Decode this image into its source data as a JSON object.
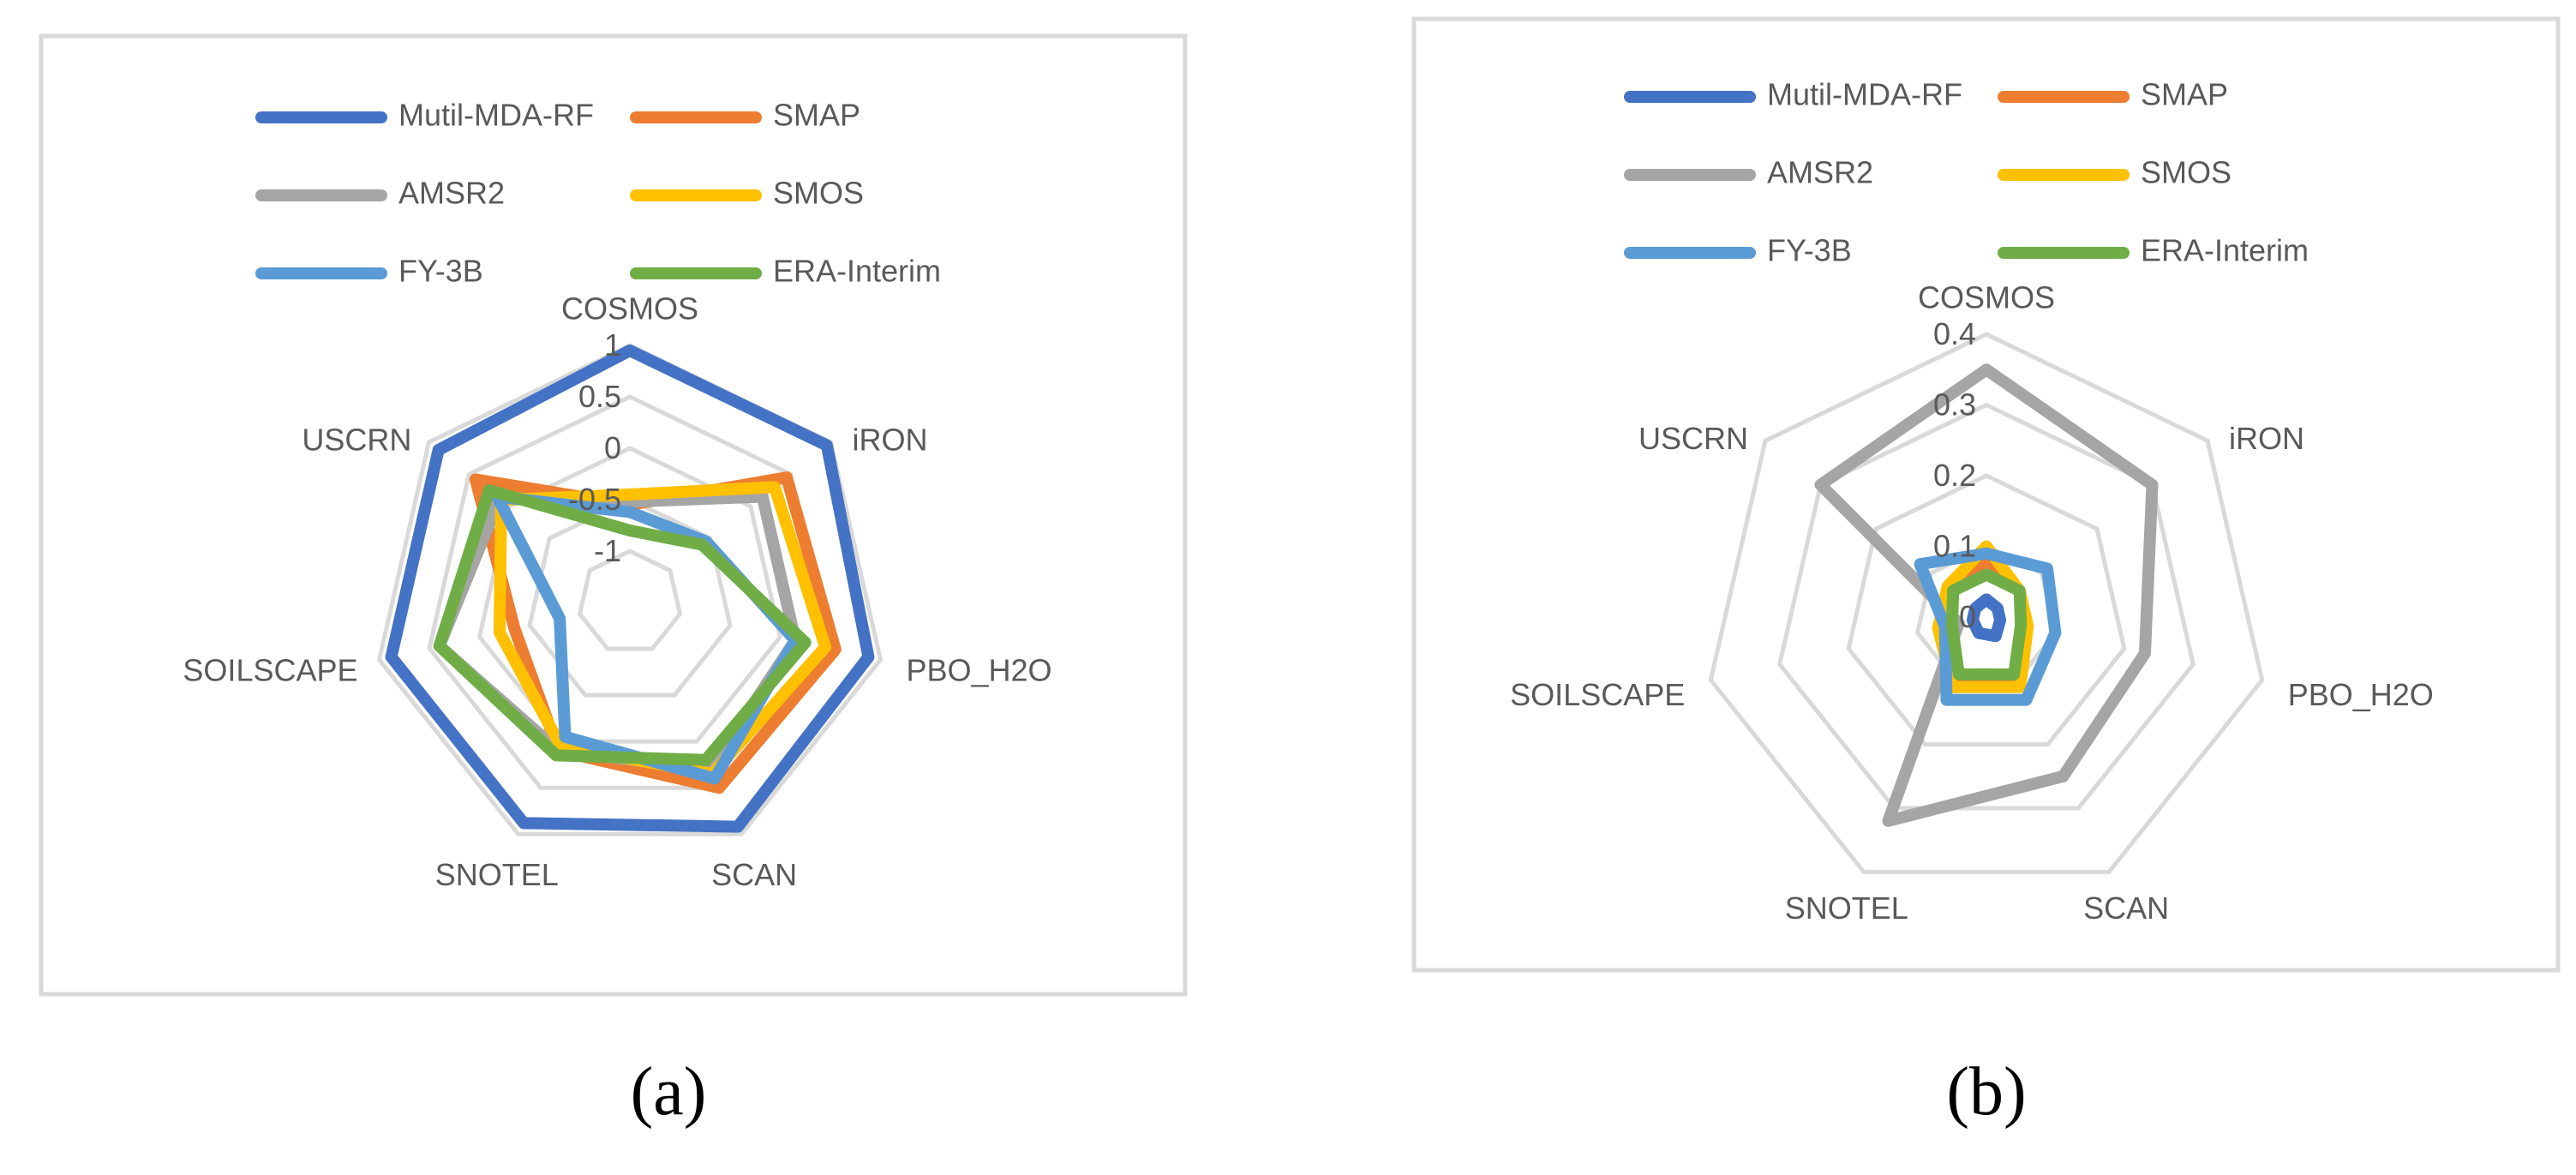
{
  "chart_data": [
    {
      "type": "radar",
      "panel_label": "(a)",
      "axes": [
        "COSMOS",
        "iRON",
        "PBO_H2O",
        "SCAN",
        "SNOTEL",
        "SOILSCAPE",
        "USCRN"
      ],
      "rlim": [
        -1.5,
        1
      ],
      "ticks": [
        -1,
        -0.5,
        0,
        0.5,
        1
      ],
      "tick_labels": [
        "-1",
        "-0.5",
        "0",
        "0.5",
        "1"
      ],
      "grid": true,
      "legend_position": "top",
      "series": [
        {
          "name": "Mutil-MDA-RF",
          "color": "#4472C4",
          "values": [
            0.95,
            0.95,
            0.88,
            0.92,
            0.88,
            0.88,
            0.88
          ]
        },
        {
          "name": "SMAP",
          "color": "#ED7D31",
          "values": [
            -0.55,
            0.45,
            0.55,
            0.5,
            0.1,
            -0.35,
            0.42
          ]
        },
        {
          "name": "AMSR2",
          "color": "#A5A5A5",
          "values": [
            -0.52,
            0.15,
            0.15,
            0.3,
            0.1,
            0.4,
            0.12
          ]
        },
        {
          "name": "SMOS",
          "color": "#FFC000",
          "values": [
            -0.45,
            0.3,
            0.45,
            0.35,
            0.05,
            -0.2,
            0.1
          ]
        },
        {
          "name": "FY-3B",
          "color": "#5B9BD5",
          "values": [
            -0.62,
            -0.55,
            0.15,
            0.4,
            -0.05,
            -0.8,
            0.15
          ]
        },
        {
          "name": "ERA-Interim",
          "color": "#70AD47",
          "values": [
            -0.8,
            -0.6,
            0.25,
            0.2,
            0.15,
            0.4,
            0.25
          ]
        }
      ]
    },
    {
      "type": "radar",
      "panel_label": "(b)",
      "axes": [
        "COSMOS",
        "iRON",
        "PBO_H2O",
        "SCAN",
        "SNOTEL",
        "SOILSCAPE",
        "USCRN"
      ],
      "rlim": [
        0,
        0.4
      ],
      "ticks": [
        0,
        0.1,
        0.2,
        0.3,
        0.4
      ],
      "tick_labels": [
        "0",
        "0.1",
        "0.2",
        "0.3",
        "0.4"
      ],
      "grid": true,
      "legend_position": "top",
      "series": [
        {
          "name": "Mutil-MDA-RF",
          "color": "#4472C4",
          "values": [
            0.025,
            0.02,
            0.02,
            0.03,
            0.025,
            0.02,
            0.02
          ]
        },
        {
          "name": "SMAP",
          "color": "#ED7D31",
          "values": [
            0.08,
            0.06,
            0.06,
            0.1,
            0.1,
            0.06,
            0.06
          ]
        },
        {
          "name": "AMSR2",
          "color": "#A5A5A5",
          "values": [
            0.35,
            0.3,
            0.23,
            0.25,
            0.32,
            0.04,
            0.3
          ]
        },
        {
          "name": "SMOS",
          "color": "#FFC000",
          "values": [
            0.1,
            0.06,
            0.06,
            0.11,
            0.11,
            0.07,
            0.07
          ]
        },
        {
          "name": "FY-3B",
          "color": "#5B9BD5",
          "values": [
            0.09,
            0.11,
            0.1,
            0.13,
            0.13,
            0.06,
            0.12
          ]
        },
        {
          "name": "ERA-Interim",
          "color": "#70AD47",
          "values": [
            0.06,
            0.06,
            0.05,
            0.09,
            0.09,
            0.05,
            0.06
          ]
        }
      ]
    }
  ]
}
